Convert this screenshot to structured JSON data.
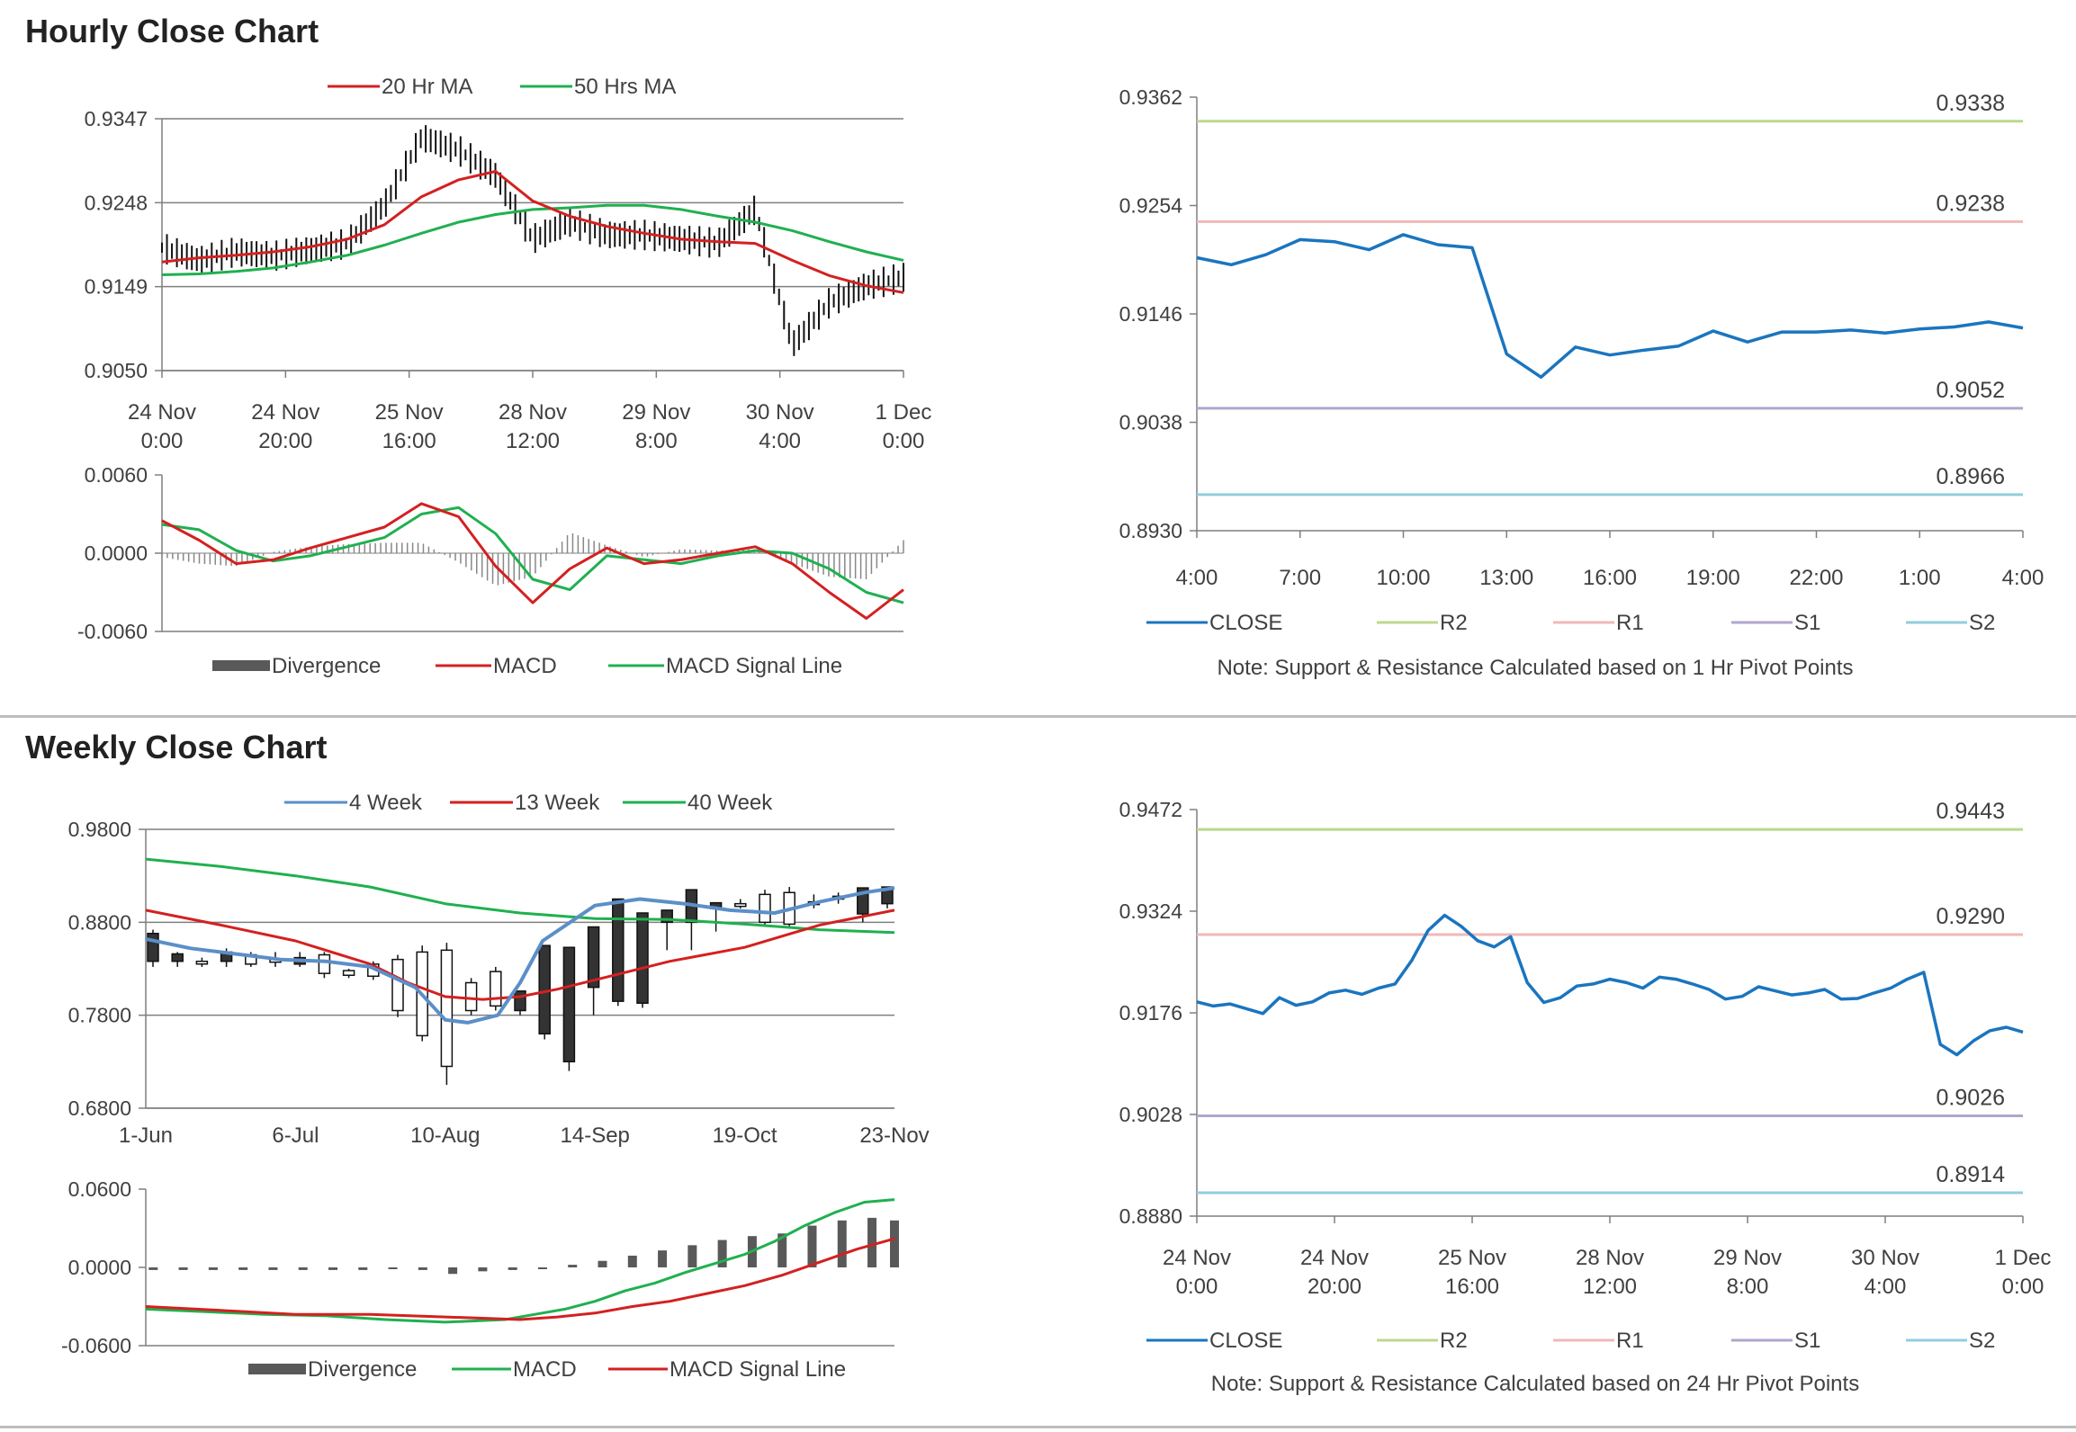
{
  "sections": {
    "hourly_title": "Hourly Close Chart",
    "weekly_title": "Weekly Close Chart"
  },
  "colors": {
    "ma_red": "#d42020",
    "ma_green": "#20b050",
    "wk_blue": "#5b8fc8",
    "close_blue": "#1a75bf",
    "r2": "#bcd88f",
    "r1": "#f0b8b8",
    "s1": "#b0a6cc",
    "s2": "#92cddd",
    "divergence": "#595959",
    "grid": "#7f7f7f"
  },
  "chart_data": [
    {
      "id": "hourly_price",
      "type": "line",
      "title": "",
      "ylim": [
        0.905,
        0.9347
      ],
      "yticks": [
        "0.9347",
        "0.9248",
        "0.9149",
        "0.9050"
      ],
      "xticks": [
        [
          "24 Nov",
          "0:00"
        ],
        [
          "24 Nov",
          "20:00"
        ],
        [
          "25 Nov",
          "16:00"
        ],
        [
          "28 Nov",
          "12:00"
        ],
        [
          "29 Nov",
          "8:00"
        ],
        [
          "30 Nov",
          "4:00"
        ],
        [
          "1 Dec",
          "0:00"
        ]
      ],
      "legend": [
        "20 Hr MA",
        "50 Hrs MA"
      ],
      "legend_position": "top",
      "x": [
        0,
        0.05,
        0.1,
        0.15,
        0.2,
        0.25,
        0.3,
        0.35,
        0.4,
        0.45,
        0.5,
        0.55,
        0.6,
        0.65,
        0.7,
        0.75,
        0.8,
        0.85,
        0.9,
        0.95,
        1.0
      ],
      "series": [
        {
          "name": "Close",
          "values": [
            0.9195,
            0.918,
            0.919,
            0.9185,
            0.9192,
            0.92,
            0.9245,
            0.9325,
            0.931,
            0.928,
            0.9205,
            0.9225,
            0.921,
            0.921,
            0.9205,
            0.92,
            0.924,
            0.908,
            0.913,
            0.915,
            0.916
          ]
        },
        {
          "name": "20 Hr MA",
          "values": [
            0.9178,
            0.9183,
            0.9186,
            0.919,
            0.9196,
            0.9205,
            0.9222,
            0.9255,
            0.9275,
            0.9285,
            0.925,
            0.9232,
            0.922,
            0.9212,
            0.9205,
            0.9202,
            0.92,
            0.918,
            0.9162,
            0.915,
            0.9142
          ]
        },
        {
          "name": "50 Hrs MA",
          "values": [
            0.9163,
            0.9164,
            0.9167,
            0.9171,
            0.9178,
            0.9186,
            0.9198,
            0.9212,
            0.9225,
            0.9234,
            0.924,
            0.9242,
            0.9245,
            0.9245,
            0.924,
            0.9232,
            0.9225,
            0.9215,
            0.9202,
            0.919,
            0.918
          ]
        }
      ]
    },
    {
      "id": "hourly_macd",
      "type": "line",
      "title": "",
      "ylim": [
        -0.006,
        0.006
      ],
      "yticks": [
        "0.0060",
        "0.0000",
        "-0.0060"
      ],
      "legend": [
        "Divergence",
        "MACD",
        "MACD Signal Line"
      ],
      "legend_position": "bottom",
      "x": [
        0,
        0.05,
        0.1,
        0.15,
        0.2,
        0.25,
        0.3,
        0.35,
        0.4,
        0.45,
        0.5,
        0.55,
        0.6,
        0.65,
        0.7,
        0.75,
        0.8,
        0.85,
        0.9,
        0.95,
        1.0
      ],
      "series": [
        {
          "name": "MACD",
          "values": [
            0.0025,
            0.001,
            -0.0008,
            -0.0005,
            0.0004,
            0.0012,
            0.002,
            0.0038,
            0.0028,
            -0.001,
            -0.0038,
            -0.0012,
            0.0004,
            -0.0008,
            -0.0005,
            0.0,
            0.0005,
            -0.0008,
            -0.003,
            -0.005,
            -0.0028
          ]
        },
        {
          "name": "MACD Signal Line",
          "values": [
            0.0022,
            0.0018,
            0.0002,
            -0.0006,
            -0.0002,
            0.0005,
            0.0012,
            0.003,
            0.0035,
            0.0015,
            -0.002,
            -0.0028,
            -0.0002,
            -0.0005,
            -0.0008,
            -0.0002,
            0.0002,
            0.0,
            -0.0012,
            -0.003,
            -0.0038
          ]
        },
        {
          "name": "Divergence",
          "values": [
            -0.0003,
            -0.0008,
            -0.001,
            0.0001,
            0.0005,
            0.0007,
            0.0008,
            0.0008,
            -0.0007,
            -0.0025,
            -0.0018,
            0.0016,
            0.0006,
            -0.0003,
            0.0003,
            0.0002,
            0.0003,
            -0.0008,
            -0.0018,
            -0.002,
            0.001
          ]
        }
      ]
    },
    {
      "id": "hourly_pivot",
      "type": "line",
      "title": "",
      "ylim": [
        0.893,
        0.9362
      ],
      "yticks": [
        "0.9362",
        "0.9254",
        "0.9146",
        "0.9038",
        "0.8930"
      ],
      "xticks": [
        "4:00",
        "7:00",
        "10:00",
        "13:00",
        "16:00",
        "19:00",
        "22:00",
        "1:00",
        "4:00"
      ],
      "levels": [
        {
          "name": "R2",
          "value": 0.9338,
          "label": "0.9338"
        },
        {
          "name": "R1",
          "value": 0.9238,
          "label": "0.9238"
        },
        {
          "name": "S1",
          "value": 0.9052,
          "label": "0.9052"
        },
        {
          "name": "S2",
          "value": 0.8966,
          "label": "0.8966"
        }
      ],
      "x": [
        0,
        1,
        2,
        3,
        4,
        5,
        6,
        7,
        8,
        9,
        10,
        11,
        12,
        13,
        14,
        15,
        16,
        17,
        18,
        19,
        20,
        21,
        22,
        23,
        24
      ],
      "series": [
        {
          "name": "CLOSE",
          "values": [
            0.9202,
            0.9195,
            0.9205,
            0.922,
            0.9218,
            0.921,
            0.9225,
            0.9215,
            0.9212,
            0.9106,
            0.9083,
            0.9113,
            0.9105,
            0.911,
            0.9114,
            0.9129,
            0.9118,
            0.9128,
            0.9128,
            0.913,
            0.9127,
            0.9131,
            0.9133,
            0.9138,
            0.9132
          ]
        }
      ],
      "legend": [
        "CLOSE",
        "R2",
        "R1",
        "S1",
        "S2"
      ],
      "legend_position": "bottom",
      "note": "Note: Support & Resistance Calculated based on 1 Hr Pivot Points"
    },
    {
      "id": "weekly_price",
      "type": "line",
      "title": "",
      "ylim": [
        0.68,
        0.98
      ],
      "yticks": [
        "0.9800",
        "0.8800",
        "0.7800",
        "0.6800"
      ],
      "xticks": [
        "1-Jun",
        "6-Jul",
        "10-Aug",
        "14-Sep",
        "19-Oct",
        "23-Nov"
      ],
      "legend": [
        "4 Week",
        "13 Week",
        "40 Week"
      ],
      "legend_position": "top",
      "candles": {
        "open": [
          0.868,
          0.846,
          0.838,
          0.848,
          0.835,
          0.84,
          0.842,
          0.825,
          0.823,
          0.822,
          0.785,
          0.758,
          0.725,
          0.785,
          0.79,
          0.806,
          0.855,
          0.853,
          0.875,
          0.905,
          0.89,
          0.893,
          0.915,
          0.901,
          0.9,
          0.88,
          0.878,
          0.9,
          0.908,
          0.917,
          0.918
        ],
        "close": [
          0.838,
          0.838,
          0.838,
          0.838,
          0.845,
          0.84,
          0.835,
          0.845,
          0.828,
          0.835,
          0.84,
          0.848,
          0.85,
          0.815,
          0.827,
          0.785,
          0.76,
          0.73,
          0.81,
          0.795,
          0.793,
          0.88,
          0.88,
          0.895,
          0.9,
          0.91,
          0.912,
          0.902,
          0.905,
          0.889,
          0.9
        ],
        "high": [
          0.872,
          0.848,
          0.842,
          0.852,
          0.848,
          0.848,
          0.848,
          0.848,
          0.83,
          0.838,
          0.845,
          0.855,
          0.858,
          0.82,
          0.832,
          0.79,
          0.762,
          0.735,
          0.815,
          0.8,
          0.798,
          0.885,
          0.885,
          0.9,
          0.905,
          0.915,
          0.918,
          0.91,
          0.912,
          0.895,
          0.905
        ],
        "low": [
          0.832,
          0.832,
          0.832,
          0.832,
          0.832,
          0.832,
          0.832,
          0.82,
          0.82,
          0.818,
          0.778,
          0.752,
          0.705,
          0.78,
          0.785,
          0.78,
          0.754,
          0.72,
          0.78,
          0.79,
          0.788,
          0.85,
          0.85,
          0.87,
          0.895,
          0.875,
          0.875,
          0.895,
          0.9,
          0.88,
          0.895
        ]
      },
      "series": [
        {
          "name": "4 Week",
          "x": [
            0,
            0.06,
            0.12,
            0.18,
            0.24,
            0.3,
            0.36,
            0.4,
            0.43,
            0.47,
            0.5,
            0.53,
            0.6,
            0.66,
            0.72,
            0.78,
            0.84,
            0.9,
            0.96,
            1.0
          ],
          "values": [
            0.862,
            0.852,
            0.846,
            0.84,
            0.838,
            0.832,
            0.81,
            0.775,
            0.772,
            0.78,
            0.815,
            0.86,
            0.898,
            0.905,
            0.9,
            0.893,
            0.89,
            0.902,
            0.912,
            0.917
          ]
        },
        {
          "name": "13 Week",
          "x": [
            0,
            0.1,
            0.2,
            0.3,
            0.35,
            0.4,
            0.45,
            0.5,
            0.55,
            0.6,
            0.7,
            0.8,
            0.9,
            1.0
          ],
          "values": [
            0.893,
            0.877,
            0.86,
            0.835,
            0.815,
            0.8,
            0.797,
            0.8,
            0.808,
            0.818,
            0.838,
            0.853,
            0.877,
            0.893
          ]
        },
        {
          "name": "40 Week",
          "x": [
            0,
            0.1,
            0.2,
            0.3,
            0.4,
            0.5,
            0.6,
            0.7,
            0.8,
            0.9,
            1.0
          ],
          "values": [
            0.948,
            0.94,
            0.93,
            0.918,
            0.9,
            0.89,
            0.884,
            0.883,
            0.878,
            0.872,
            0.869
          ]
        }
      ]
    },
    {
      "id": "weekly_macd",
      "type": "line",
      "title": "",
      "ylim": [
        -0.06,
        0.06
      ],
      "yticks": [
        "0.0600",
        "0.0000",
        "-0.0600"
      ],
      "legend": [
        "Divergence",
        "MACD",
        "MACD Signal Line"
      ],
      "legend_position": "bottom",
      "series": [
        {
          "name": "MACD",
          "x": [
            0,
            0.08,
            0.16,
            0.24,
            0.32,
            0.4,
            0.48,
            0.52,
            0.56,
            0.6,
            0.64,
            0.68,
            0.72,
            0.76,
            0.8,
            0.84,
            0.88,
            0.92,
            0.96,
            1.0
          ],
          "values": [
            -0.032,
            -0.034,
            -0.036,
            -0.037,
            -0.04,
            -0.042,
            -0.04,
            -0.036,
            -0.032,
            -0.026,
            -0.018,
            -0.012,
            -0.004,
            0.003,
            0.01,
            0.02,
            0.032,
            0.042,
            0.05,
            0.052
          ]
        },
        {
          "name": "MACD Signal Line",
          "x": [
            0,
            0.1,
            0.2,
            0.3,
            0.4,
            0.5,
            0.55,
            0.6,
            0.65,
            0.7,
            0.75,
            0.8,
            0.85,
            0.9,
            0.95,
            1.0
          ],
          "values": [
            -0.03,
            -0.033,
            -0.036,
            -0.036,
            -0.038,
            -0.04,
            -0.038,
            -0.035,
            -0.03,
            -0.026,
            -0.02,
            -0.014,
            -0.006,
            0.004,
            0.014,
            0.022
          ]
        },
        {
          "name": "Divergence",
          "x": [
            0.01,
            0.05,
            0.09,
            0.13,
            0.17,
            0.21,
            0.25,
            0.29,
            0.33,
            0.37,
            0.41,
            0.45,
            0.49,
            0.53,
            0.57,
            0.61,
            0.65,
            0.69,
            0.73,
            0.77,
            0.81,
            0.85,
            0.89,
            0.93,
            0.97,
            1.0
          ],
          "values": [
            -0.002,
            -0.002,
            -0.002,
            -0.002,
            -0.002,
            -0.002,
            -0.002,
            -0.002,
            0.0,
            -0.002,
            -0.005,
            -0.003,
            -0.002,
            0.0,
            0.002,
            0.005,
            0.009,
            0.013,
            0.017,
            0.021,
            0.024,
            0.026,
            0.032,
            0.036,
            0.038,
            0.036
          ]
        }
      ]
    },
    {
      "id": "weekly_pivot",
      "type": "line",
      "title": "",
      "ylim": [
        0.888,
        0.9472
      ],
      "yticks": [
        "0.9472",
        "0.9324",
        "0.9176",
        "0.9028",
        "0.8880"
      ],
      "xticks": [
        [
          "24 Nov",
          "0:00"
        ],
        [
          "24 Nov",
          "20:00"
        ],
        [
          "25 Nov",
          "16:00"
        ],
        [
          "28 Nov",
          "12:00"
        ],
        [
          "29 Nov",
          "8:00"
        ],
        [
          "30 Nov",
          "4:00"
        ],
        [
          "1 Dec",
          "0:00"
        ]
      ],
      "levels": [
        {
          "name": "R2",
          "value": 0.9443,
          "label": "0.9443"
        },
        {
          "name": "R1",
          "value": 0.929,
          "label": "0.9290"
        },
        {
          "name": "S1",
          "value": 0.9026,
          "label": "0.9026"
        },
        {
          "name": "S2",
          "value": 0.8914,
          "label": "0.8914"
        }
      ],
      "x": [
        0,
        0.02,
        0.04,
        0.06,
        0.08,
        0.1,
        0.12,
        0.14,
        0.16,
        0.18,
        0.2,
        0.22,
        0.24,
        0.26,
        0.28,
        0.3,
        0.32,
        0.34,
        0.36,
        0.38,
        0.4,
        0.42,
        0.44,
        0.46,
        0.48,
        0.5,
        0.52,
        0.54,
        0.56,
        0.58,
        0.6,
        0.62,
        0.64,
        0.66,
        0.68,
        0.7,
        0.72,
        0.74,
        0.76,
        0.78,
        0.8,
        0.82,
        0.84,
        0.86,
        0.88,
        0.9,
        0.92,
        0.94,
        0.96,
        0.98,
        1.0
      ],
      "series": [
        {
          "name": "CLOSE",
          "values": [
            0.9192,
            0.9186,
            0.9189,
            0.9182,
            0.9175,
            0.9198,
            0.9187,
            0.9192,
            0.9205,
            0.9209,
            0.9203,
            0.9212,
            0.9218,
            0.9252,
            0.9296,
            0.9318,
            0.9302,
            0.9281,
            0.9272,
            0.9287,
            0.922,
            0.9191,
            0.9198,
            0.9215,
            0.9218,
            0.9225,
            0.922,
            0.9212,
            0.9228,
            0.9225,
            0.9218,
            0.921,
            0.9196,
            0.92,
            0.9214,
            0.9208,
            0.9202,
            0.9205,
            0.921,
            0.9196,
            0.9197,
            0.9205,
            0.9212,
            0.9225,
            0.9235,
            0.913,
            0.9115,
            0.9135,
            0.915,
            0.9155,
            0.9148
          ]
        }
      ],
      "legend": [
        "CLOSE",
        "R2",
        "R1",
        "S1",
        "S2"
      ],
      "legend_position": "bottom",
      "note": "Note: Support & Resistance Calculated based on 24 Hr Pivot Points"
    }
  ]
}
